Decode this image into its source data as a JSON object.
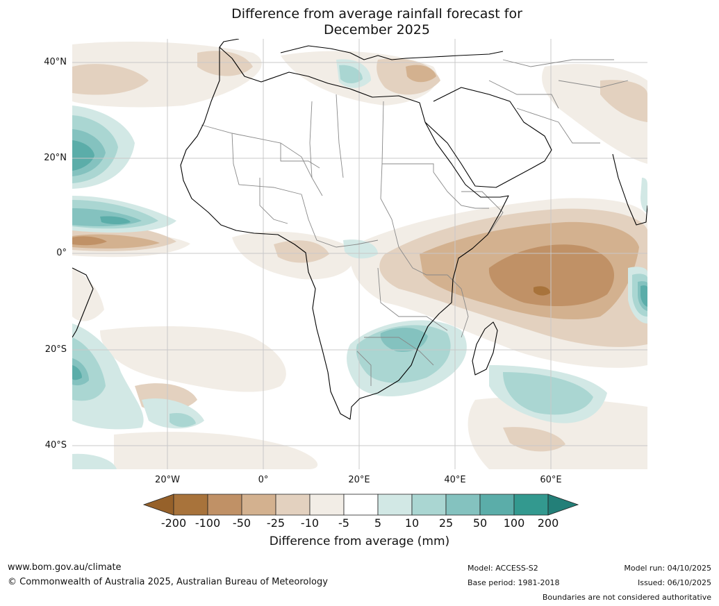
{
  "title": {
    "line1": "Difference from average rainfall forecast for",
    "line2": "December 2025"
  },
  "map": {
    "region": "Africa",
    "latitude_labels": [
      "40°N",
      "20°N",
      "0°",
      "20°S",
      "40°S"
    ],
    "longitude_labels": [
      "20°W",
      "0°",
      "20°E",
      "40°E",
      "60°E"
    ],
    "notable_anomalies": {
      "drier": [
        "Eastern Equatorial Africa and western Indian Ocean",
        "Gulf of Guinea coast",
        "Eastern Mediterranean and Turkey"
      ],
      "wetter": [
        "South-eastern Africa (Zimbabwe, Mozambique, South Africa)",
        "Tropical North Atlantic",
        "Southern Indian Ocean"
      ]
    }
  },
  "legend": {
    "title": "Difference from average (mm)",
    "ticks": [
      "-200",
      "-100",
      "-50",
      "-25",
      "-10",
      "-5",
      "5",
      "10",
      "25",
      "50",
      "100",
      "200"
    ],
    "colors": [
      "#a8733b",
      "#c09166",
      "#d3b18f",
      "#e3d1bf",
      "#f2ede6",
      "#ffffff",
      "#d2e8e5",
      "#aad6d2",
      "#84c2bf",
      "#5bada9",
      "#33998f"
    ],
    "extend_low_color": "#96612a",
    "extend_high_color": "#237f78"
  },
  "footer": {
    "website": "www.bom.gov.au/climate",
    "copyright": "© Commonwealth of Australia 2025, Australian Bureau of Meteorology",
    "model": "Model: ACCESS-S2",
    "base_period": "Base period: 1981-2018",
    "model_run": "Model run: 04/10/2025",
    "issued": "Issued: 06/10/2025",
    "disclaimer": "Boundaries are not considered authoritative"
  },
  "palette": {
    "map_background": "#ffffff",
    "gridline": "#c8c8c8",
    "coastline": "#000000",
    "border": "#888888"
  }
}
